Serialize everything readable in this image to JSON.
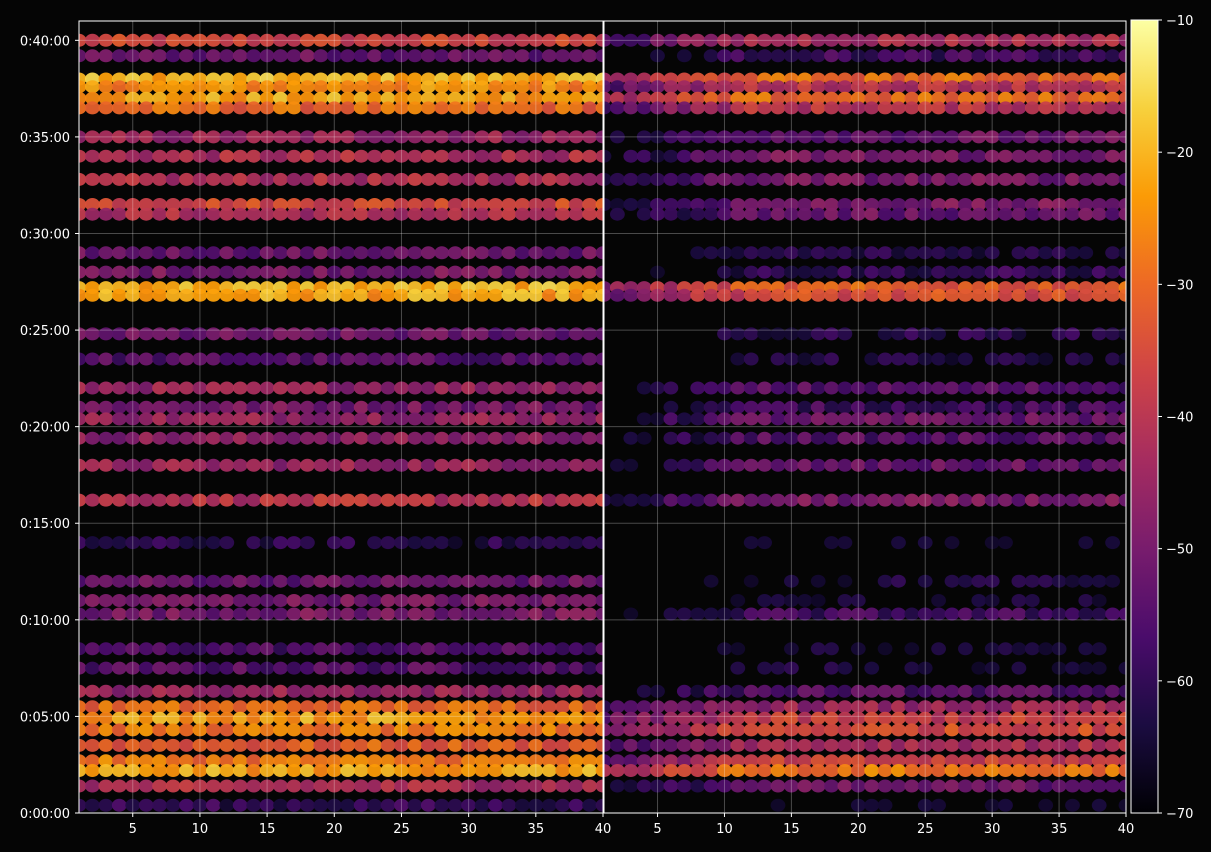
{
  "chart_data": {
    "type": "heatmap",
    "title": "",
    "xlabel": "",
    "ylabel": "",
    "background": "#050505",
    "grid": true,
    "colormap": "inferno",
    "panels": [
      {
        "name": "",
        "xlim": [
          1,
          40
        ],
        "x_ticks": [
          "5",
          "10",
          "15",
          "20",
          "25",
          "30",
          "35",
          "40"
        ]
      },
      {
        "name": "",
        "xlim": [
          1,
          40
        ],
        "x_ticks": [
          "5",
          "10",
          "15",
          "20",
          "25",
          "30",
          "35",
          "40"
        ]
      }
    ],
    "y_axis": {
      "unit": "minutes",
      "ylim": [
        0,
        41
      ],
      "ticks": [
        "0:00:00",
        "0:05:00",
        "0:10:00",
        "0:15:00",
        "0:20:00",
        "0:25:00",
        "0:30:00",
        "0:35:00",
        "0:40:00"
      ]
    },
    "colorbar": {
      "range": [
        -70,
        -10
      ],
      "ticks": [
        "−10",
        "−20",
        "−30",
        "−40",
        "−50",
        "−60",
        "−70"
      ],
      "colors": [
        "#000004",
        "#1b0c41",
        "#4a0c6b",
        "#781c6d",
        "#a52c60",
        "#cf4446",
        "#ed6925",
        "#fb9b06",
        "#f7d13d",
        "#fcffa4"
      ]
    },
    "bands": [
      {
        "y": 40.0,
        "left": -37,
        "right": -42
      },
      {
        "y": 39.2,
        "left": -52,
        "right": -58
      },
      {
        "y": 38.0,
        "left": -20,
        "right": -30
      },
      {
        "y": 37.6,
        "left": -25,
        "right": -40
      },
      {
        "y": 37.0,
        "left": -22,
        "right": -30
      },
      {
        "y": 36.5,
        "left": -30,
        "right": -40
      },
      {
        "y": 35.0,
        "left": -45,
        "right": -52
      },
      {
        "y": 34.0,
        "left": -42,
        "right": -50
      },
      {
        "y": 32.8,
        "left": -42,
        "right": -50
      },
      {
        "y": 31.5,
        "left": -35,
        "right": -50
      },
      {
        "y": 31.0,
        "left": -42,
        "right": -52
      },
      {
        "y": 29.0,
        "left": -52,
        "right": -62
      },
      {
        "y": 28.0,
        "left": -50,
        "right": -60
      },
      {
        "y": 27.2,
        "left": -20,
        "right": -32
      },
      {
        "y": 26.8,
        "left": -22,
        "right": -35
      },
      {
        "y": 24.8,
        "left": -52,
        "right": -62
      },
      {
        "y": 23.5,
        "left": -55,
        "right": -64
      },
      {
        "y": 22.0,
        "left": -45,
        "right": -55
      },
      {
        "y": 21.0,
        "left": -50,
        "right": -58
      },
      {
        "y": 20.4,
        "left": -45,
        "right": -52
      },
      {
        "y": 19.4,
        "left": -47,
        "right": -55
      },
      {
        "y": 18.0,
        "left": -45,
        "right": -53
      },
      {
        "y": 16.2,
        "left": -40,
        "right": -50
      },
      {
        "y": 14.0,
        "left": -62,
        "right": -68
      },
      {
        "y": 12.0,
        "left": -52,
        "right": -64
      },
      {
        "y": 11.0,
        "left": -50,
        "right": -66
      },
      {
        "y": 10.3,
        "left": -50,
        "right": -58
      },
      {
        "y": 8.5,
        "left": -56,
        "right": -66
      },
      {
        "y": 7.5,
        "left": -55,
        "right": -65
      },
      {
        "y": 6.3,
        "left": -45,
        "right": -55
      },
      {
        "y": 5.5,
        "left": -30,
        "right": -45
      },
      {
        "y": 4.9,
        "left": -22,
        "right": -38
      },
      {
        "y": 4.3,
        "left": -28,
        "right": -35
      },
      {
        "y": 3.5,
        "left": -32,
        "right": -42
      },
      {
        "y": 2.7,
        "left": -28,
        "right": -38
      },
      {
        "y": 2.2,
        "left": -22,
        "right": -28
      },
      {
        "y": 1.4,
        "left": -42,
        "right": -52
      },
      {
        "y": 0.4,
        "left": -60,
        "right": -68
      }
    ]
  }
}
